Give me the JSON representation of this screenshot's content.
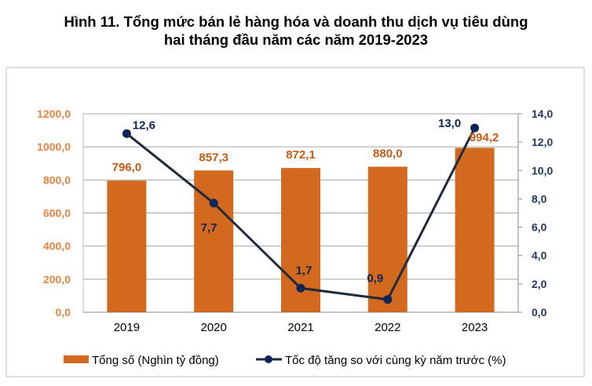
{
  "chart_data": {
    "type": "bar+line",
    "title_lines": [
      "Hình 11. Tổng mức bán lẻ hàng hóa và doanh thu dịch vụ tiêu dùng",
      "hai tháng đầu năm các năm 2019-2023"
    ],
    "categories": [
      "2019",
      "2020",
      "2021",
      "2022",
      "2023"
    ],
    "series": [
      {
        "name": "Tổng số (Nghìn tỷ đồng)",
        "type": "bar",
        "axis": "left",
        "values": [
          796.0,
          857.3,
          872.1,
          880.0,
          994.2
        ],
        "labels": [
          "796,0",
          "857,3",
          "872,1",
          "880,0",
          "994,2"
        ],
        "color": "#D2691E"
      },
      {
        "name": "Tốc độ tăng so với cùng kỳ năm trước (%)",
        "type": "line",
        "axis": "right",
        "values": [
          12.6,
          7.7,
          1.7,
          0.9,
          13.0
        ],
        "labels": [
          "12,6",
          "7,7",
          "1,7",
          "0,9",
          "13,0"
        ],
        "color": "#1F2A3A",
        "marker_color": "#0F2457"
      }
    ],
    "y_left": {
      "range": [
        0,
        1200
      ],
      "ticks": [
        "0,0",
        "200,0",
        "400,0",
        "600,0",
        "800,0",
        "1000,0",
        "1200,0"
      ],
      "color": "#E8843F"
    },
    "y_right": {
      "range": [
        0,
        14
      ],
      "ticks": [
        "0,0",
        "2,0",
        "4,0",
        "6,0",
        "8,0",
        "10,0",
        "12,0",
        "14,0"
      ],
      "color": "#1F3864"
    },
    "grid": true,
    "legend": "bottom"
  }
}
